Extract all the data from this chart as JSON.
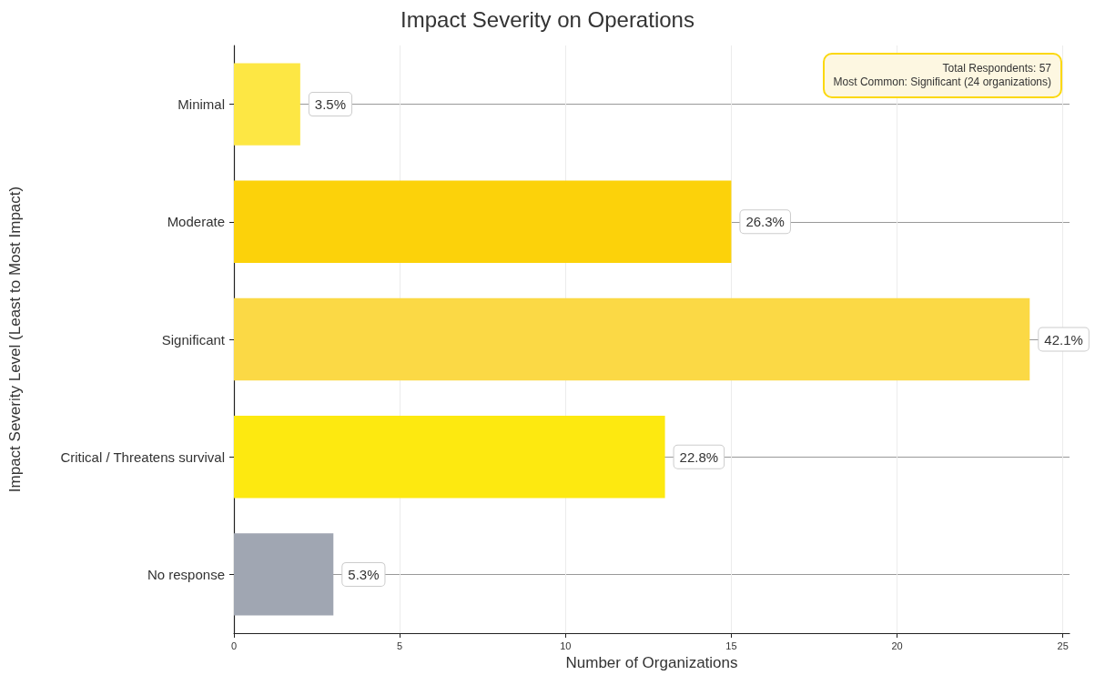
{
  "chart_data": {
    "type": "bar",
    "orientation": "horizontal",
    "title": "Impact Severity on Operations",
    "xlabel": "Number of Organizations",
    "ylabel": "Impact Severity Level (Least to Most Impact)",
    "categories": [
      "Minimal",
      "Moderate",
      "Significant",
      "Critical / Threatens survival",
      "No response"
    ],
    "values": [
      2,
      15,
      24,
      13,
      3
    ],
    "colors": [
      "#fde744",
      "#fcd20a",
      "#fbd945",
      "#fde910",
      "#a0a6b2"
    ],
    "xlim": [
      0,
      25.2
    ],
    "xticks": [
      0,
      5,
      10,
      15,
      20,
      25
    ],
    "grid": true,
    "annotations": [
      "Total Respondents: 57",
      "Most Common: Significant (24 organizations)",
      {
        "text": "3.5%",
        "x": 2,
        "y": "Minimal"
      },
      {
        "text": "26.3%",
        "x": 15,
        "y": "Moderate"
      },
      {
        "text": "42.1%",
        "x": 24,
        "y": "Significant"
      },
      {
        "text": "22.8%",
        "x": 13,
        "y": "Critical / Threatens survival"
      },
      {
        "text": "5.3%",
        "x": 3,
        "y": "No response"
      }
    ]
  }
}
